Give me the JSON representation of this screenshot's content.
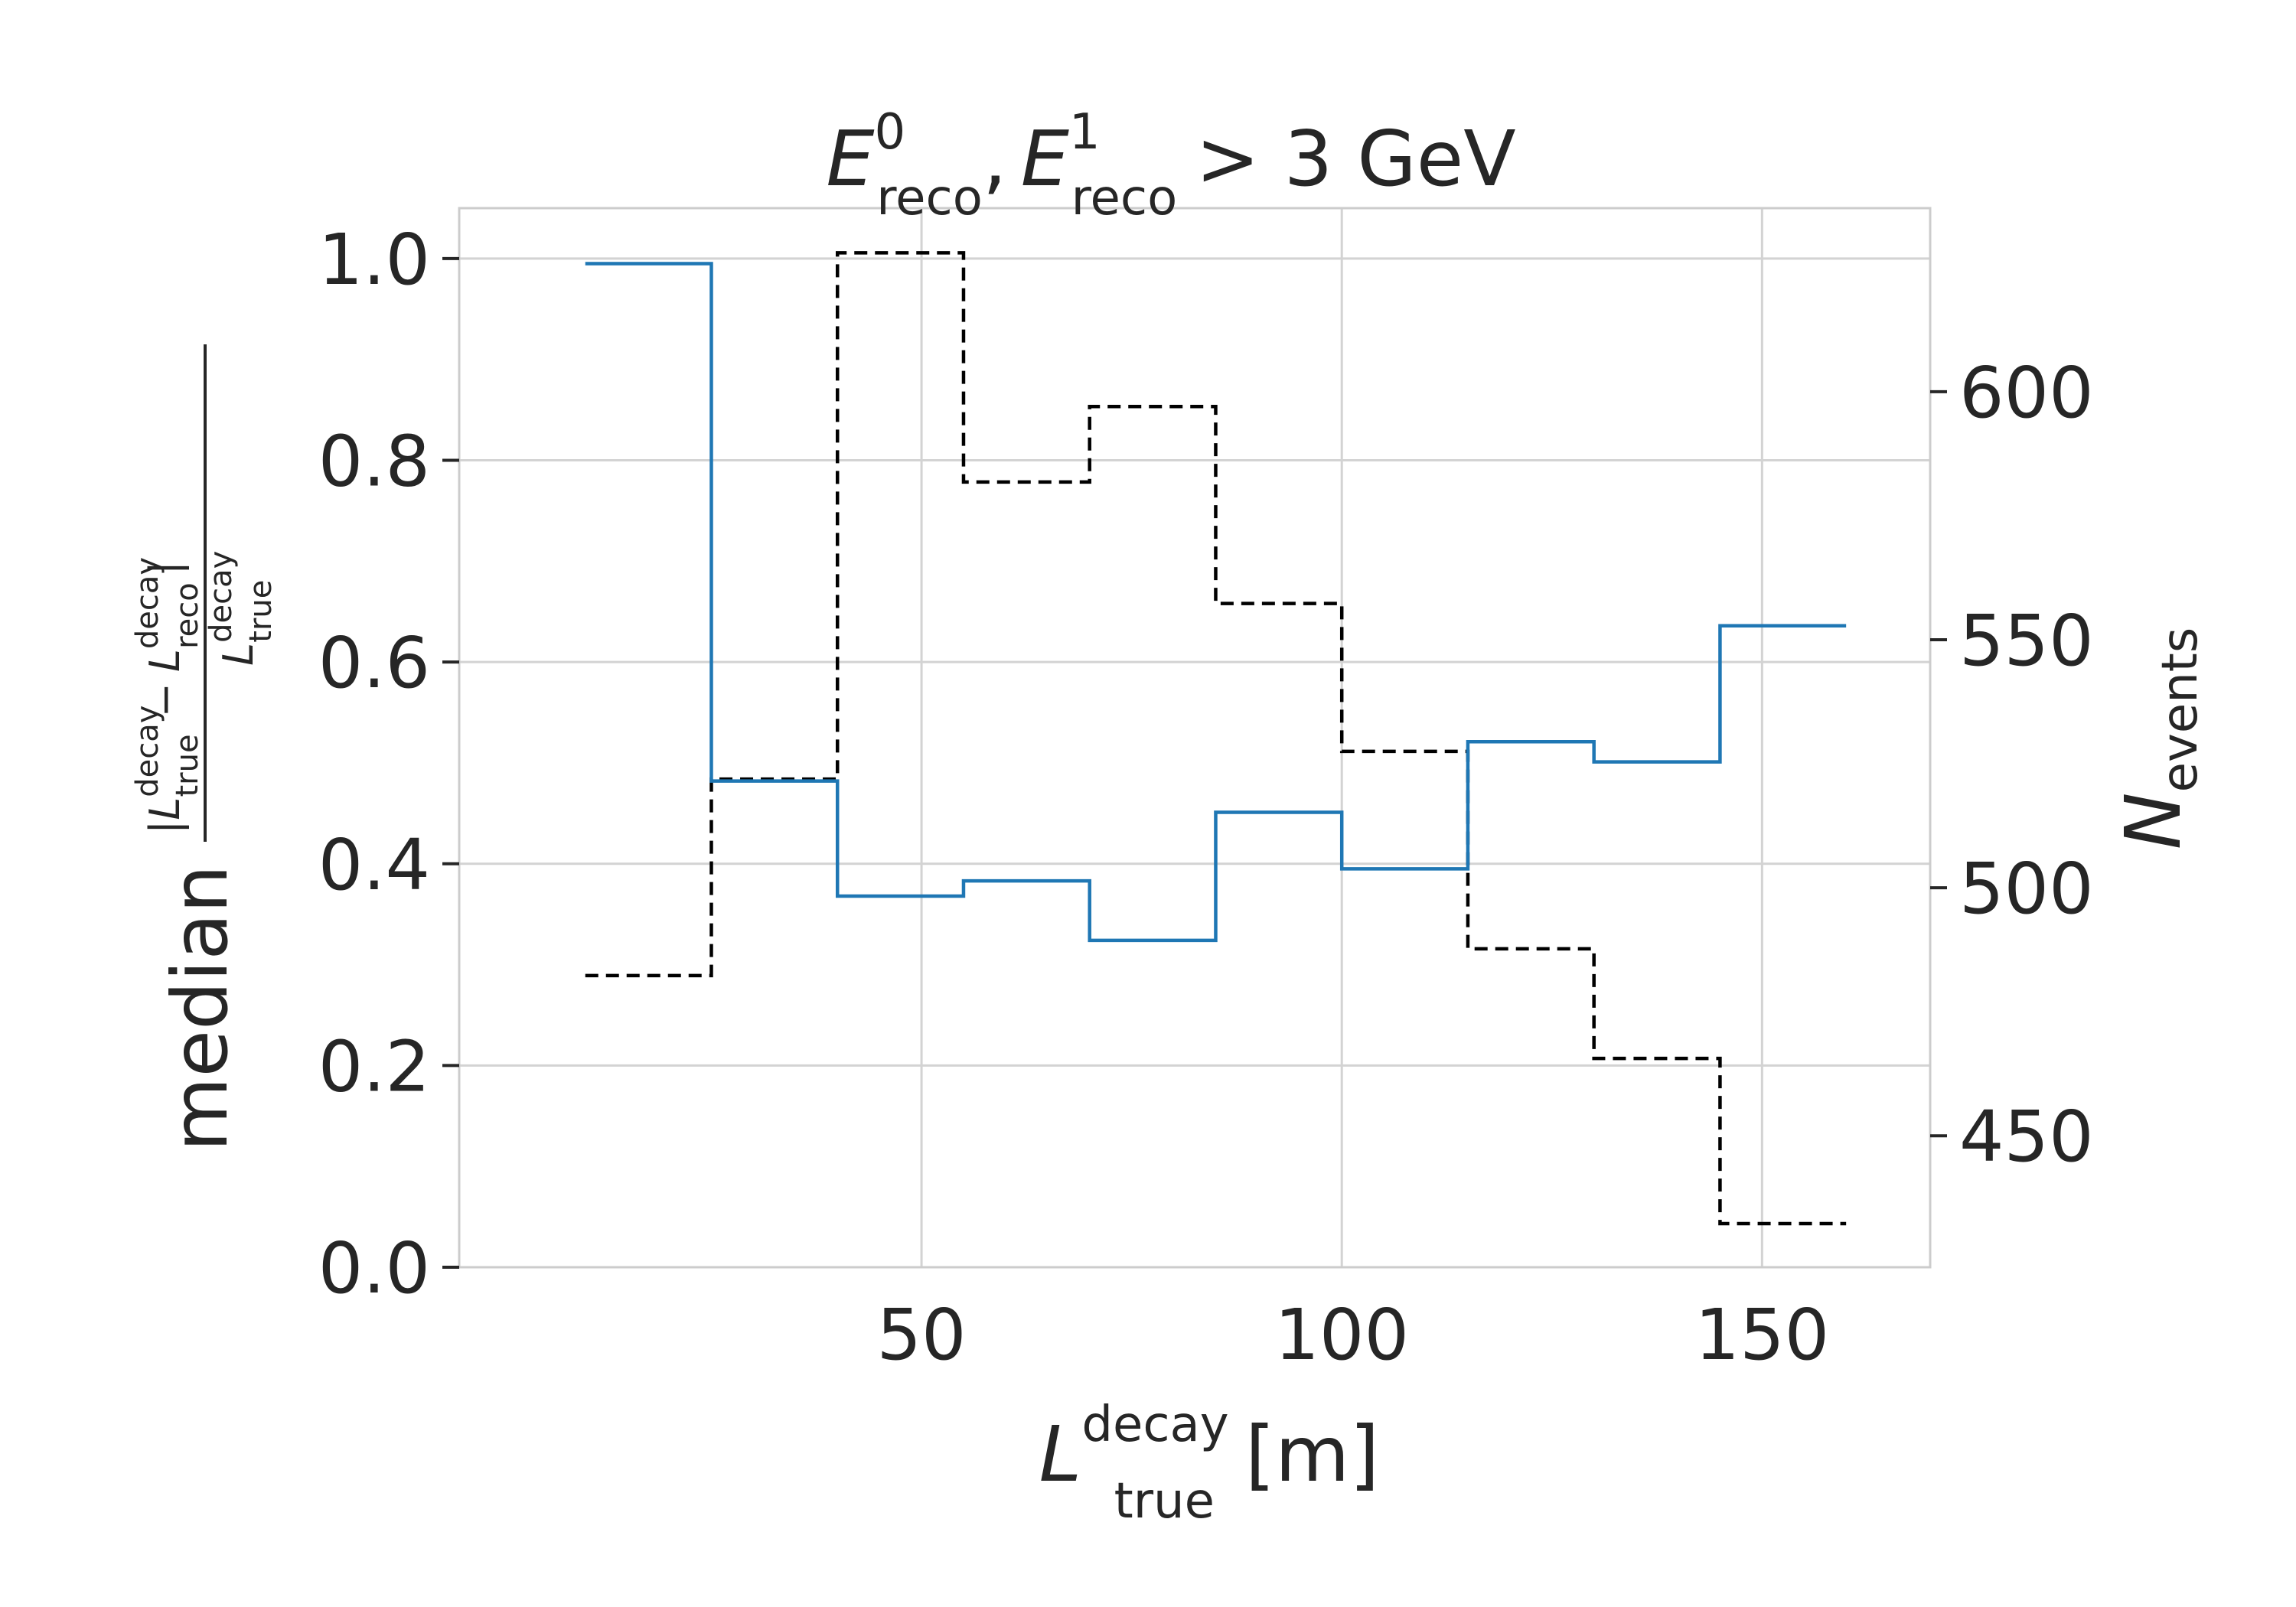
{
  "chart_data": {
    "type": "line",
    "step": true,
    "title": {
      "E": "E",
      "sup0": "0",
      "sup1": "1",
      "reco": "reco",
      "sep": ",",
      "rest": "> 3 GeV"
    },
    "xlabel": {
      "L": "L",
      "sub": "true",
      "sup": "decay",
      "unit": "[m]"
    },
    "ylabel": {
      "median": "median",
      "bar": "|",
      "minus": "−",
      "L": "L",
      "true": "true",
      "reco": "reco",
      "decay": "decay"
    },
    "y2label": {
      "N": "N",
      "sub": "events"
    },
    "xlim": [
      -5,
      170
    ],
    "ylim": [
      0,
      1.05
    ],
    "y2lim": [
      423.5,
      637
    ],
    "xticks": [
      50,
      100,
      150
    ],
    "xtick_labels": [
      "50",
      "100",
      "150"
    ],
    "yticks": [
      0.0,
      0.2,
      0.4,
      0.6,
      0.8,
      1.0
    ],
    "ytick_labels": [
      "0.0",
      "0.2",
      "0.4",
      "0.6",
      "0.8",
      "1.0"
    ],
    "y2ticks": [
      450,
      500,
      550,
      600
    ],
    "y2tick_labels": [
      "450",
      "500",
      "550",
      "600"
    ],
    "bin_edges": [
      10,
      25,
      40,
      55,
      70,
      85,
      100,
      115,
      130,
      145,
      160
    ],
    "grid": true,
    "series": [
      {
        "axis": "left",
        "color": "#1f77b4",
        "linestyle": "solid",
        "values": [
          0.995,
          0.482,
          0.368,
          0.383,
          0.324,
          0.451,
          0.395,
          0.521,
          0.501,
          0.636
        ]
      },
      {
        "axis": "right",
        "color": "#000000",
        "linestyle": "dashed",
        "values": [
          482.3,
          521.9,
          628.0,
          581.8,
          597.0,
          557.3,
          527.5,
          487.7,
          465.6,
          432.3
        ]
      }
    ]
  }
}
